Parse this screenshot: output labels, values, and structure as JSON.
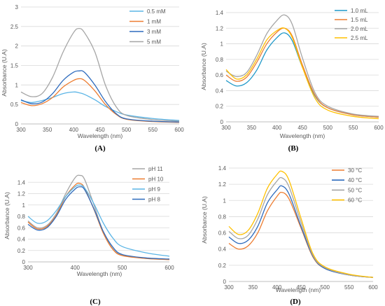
{
  "chart_data": [
    {
      "panel": "(A)",
      "type": "line",
      "xlabel": "Wavelength (nm)",
      "ylabel": "Absorbance (U.A)",
      "xlim": [
        300,
        600
      ],
      "ylim": [
        0,
        3
      ],
      "xticks": [
        300,
        350,
        400,
        450,
        500,
        550,
        600
      ],
      "yticks": [
        0,
        0.5,
        1,
        1.5,
        2,
        2.5,
        3
      ],
      "ytick_labels": [
        "0",
        "0.5",
        "1",
        "1.5",
        "2",
        "2.5",
        "3"
      ],
      "grid": "horizontal",
      "legend_position": "top-right",
      "x": [
        300,
        320,
        340,
        360,
        380,
        400,
        410,
        420,
        440,
        460,
        480,
        500,
        550,
        600
      ],
      "series": [
        {
          "name": "0.5 mM",
          "color": "#5bb5e6",
          "values": [
            0.6,
            0.55,
            0.6,
            0.68,
            0.78,
            0.82,
            0.8,
            0.76,
            0.62,
            0.45,
            0.32,
            0.23,
            0.14,
            0.09
          ]
        },
        {
          "name": "1 mM",
          "color": "#ed7d31",
          "values": [
            0.55,
            0.47,
            0.52,
            0.68,
            0.95,
            1.12,
            1.16,
            1.12,
            0.85,
            0.5,
            0.25,
            0.12,
            0.06,
            0.04
          ]
        },
        {
          "name": "3 mM",
          "color": "#2e6bbd",
          "values": [
            0.62,
            0.52,
            0.56,
            0.78,
            1.12,
            1.33,
            1.36,
            1.33,
            1.0,
            0.58,
            0.27,
            0.13,
            0.07,
            0.05
          ]
        },
        {
          "name": "5 mM",
          "color": "#a5a5a5",
          "values": [
            0.82,
            0.7,
            0.78,
            1.2,
            1.85,
            2.35,
            2.45,
            2.35,
            1.85,
            1.0,
            0.45,
            0.22,
            0.11,
            0.07
          ]
        }
      ]
    },
    {
      "panel": "(B)",
      "type": "line",
      "xlabel": "Wavelength (nm)",
      "ylabel": "Absorbance (U.A)",
      "xlim": [
        300,
        600
      ],
      "ylim": [
        0,
        1.4
      ],
      "xticks": [
        300,
        350,
        400,
        450,
        500,
        550,
        600
      ],
      "yticks": [
        0,
        0.2,
        0.4,
        0.6,
        0.8,
        1,
        1.2,
        1.4
      ],
      "ytick_labels": [
        "0",
        "0.2",
        "0.4",
        "0.6",
        "0.8",
        "1",
        "1.2",
        "1.4"
      ],
      "grid": "horizontal",
      "legend_position": "top-right",
      "x": [
        300,
        320,
        340,
        360,
        380,
        400,
        415,
        430,
        450,
        475,
        500,
        550,
        600
      ],
      "series": [
        {
          "name": "1.0 mL",
          "color": "#1f98c8",
          "values": [
            0.53,
            0.46,
            0.5,
            0.66,
            0.92,
            1.08,
            1.14,
            1.04,
            0.7,
            0.33,
            0.18,
            0.09,
            0.06
          ]
        },
        {
          "name": "1.5 mL",
          "color": "#ed7d31",
          "values": [
            0.6,
            0.52,
            0.57,
            0.76,
            1.0,
            1.15,
            1.2,
            1.1,
            0.73,
            0.34,
            0.18,
            0.09,
            0.06
          ]
        },
        {
          "name": "2.0 mL",
          "color": "#a5a5a5",
          "values": [
            0.65,
            0.58,
            0.63,
            0.85,
            1.13,
            1.3,
            1.37,
            1.25,
            0.82,
            0.37,
            0.2,
            0.1,
            0.07
          ]
        },
        {
          "name": "2.5 mL",
          "color": "#ffc000",
          "values": [
            0.67,
            0.55,
            0.6,
            0.8,
            1.05,
            1.17,
            1.2,
            1.08,
            0.7,
            0.3,
            0.15,
            0.07,
            0.04
          ]
        }
      ]
    },
    {
      "panel": "(C)",
      "type": "line",
      "xlabel": "Wavelength (nm)",
      "ylabel": "Absorbance (U.A)",
      "xlim": [
        300,
        600
      ],
      "ylim": [
        0,
        1.6
      ],
      "xticks": [
        300,
        400,
        500,
        600
      ],
      "yticks": [
        0,
        0.2,
        0.4,
        0.6,
        0.8,
        1,
        1.2,
        1.4
      ],
      "ytick_labels": [
        "0",
        "0.2",
        "0.4",
        "0.6",
        "0.8",
        "1",
        "1.2",
        "1.4"
      ],
      "grid": "horizontal",
      "legend_position": "top-right",
      "x": [
        300,
        320,
        340,
        360,
        380,
        400,
        410,
        420,
        440,
        460,
        480,
        500,
        550,
        600
      ],
      "series": [
        {
          "name": "pH 11",
          "color": "#a5a5a5",
          "values": [
            0.72,
            0.6,
            0.64,
            0.85,
            1.2,
            1.48,
            1.52,
            1.45,
            1.0,
            0.52,
            0.23,
            0.12,
            0.06,
            0.04
          ]
        },
        {
          "name": "pH 10",
          "color": "#ed7d31",
          "values": [
            0.7,
            0.58,
            0.62,
            0.82,
            1.15,
            1.35,
            1.38,
            1.3,
            0.92,
            0.5,
            0.22,
            0.11,
            0.06,
            0.04
          ]
        },
        {
          "name": "pH 9",
          "color": "#5bb5e6",
          "values": [
            0.8,
            0.68,
            0.72,
            0.9,
            1.15,
            1.32,
            1.35,
            1.3,
            1.02,
            0.68,
            0.42,
            0.27,
            0.16,
            0.1
          ]
        },
        {
          "name": "pH 8",
          "color": "#2e6bbd",
          "values": [
            0.66,
            0.56,
            0.6,
            0.8,
            1.1,
            1.28,
            1.32,
            1.27,
            0.93,
            0.53,
            0.26,
            0.13,
            0.07,
            0.05
          ]
        }
      ]
    },
    {
      "panel": "(D)",
      "type": "line",
      "xlabel": "Wavelength (nm)",
      "ylabel": "Absorbance (U.A)",
      "xlim": [
        300,
        600
      ],
      "ylim": [
        0,
        1.4
      ],
      "xticks": [
        300,
        350,
        400,
        450,
        500,
        550,
        600
      ],
      "yticks": [
        0,
        0.2,
        0.4,
        0.6,
        0.8,
        1,
        1.2,
        1.4
      ],
      "ytick_labels": [
        "0",
        "0.2",
        "0.4",
        "0.6",
        "0.8",
        "1",
        "1.2",
        "1.4"
      ],
      "grid": "horizontal",
      "legend_position": "top-right",
      "x": [
        300,
        320,
        340,
        360,
        380,
        400,
        410,
        425,
        450,
        475,
        500,
        550,
        600
      ],
      "series": [
        {
          "name": "30 °C",
          "color": "#ed7d31",
          "values": [
            0.47,
            0.4,
            0.44,
            0.6,
            0.87,
            1.05,
            1.1,
            1.02,
            0.66,
            0.3,
            0.16,
            0.08,
            0.05
          ]
        },
        {
          "name": "40 °C",
          "color": "#2e6bbd",
          "values": [
            0.55,
            0.47,
            0.51,
            0.68,
            0.97,
            1.13,
            1.18,
            1.08,
            0.68,
            0.31,
            0.16,
            0.08,
            0.05
          ]
        },
        {
          "name": "50 °C",
          "color": "#a5a5a5",
          "values": [
            0.62,
            0.53,
            0.57,
            0.77,
            1.07,
            1.24,
            1.28,
            1.17,
            0.73,
            0.32,
            0.17,
            0.08,
            0.05
          ]
        },
        {
          "name": "60 °C",
          "color": "#ffc000",
          "values": [
            0.68,
            0.58,
            0.63,
            0.84,
            1.15,
            1.32,
            1.36,
            1.25,
            0.78,
            0.34,
            0.18,
            0.09,
            0.05
          ]
        }
      ]
    }
  ]
}
